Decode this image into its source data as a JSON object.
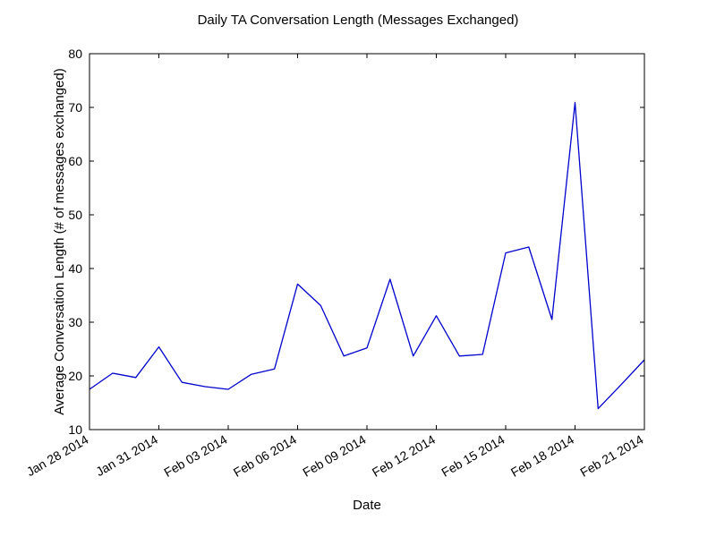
{
  "chart_data": {
    "type": "line",
    "title": "Daily TA Conversation Length (Messages Exchanged)",
    "xlabel": "Date",
    "ylabel": "Average Conversation Length (# of messages exchanged)",
    "x_axis": {
      "type": "date",
      "range": [
        "2014-01-28",
        "2014-02-21"
      ],
      "ticks": [
        {
          "date": "2014-01-28",
          "label": "Jan 28 2014"
        },
        {
          "date": "2014-01-31",
          "label": "Jan 31 2014"
        },
        {
          "date": "2014-02-03",
          "label": "Feb 03 2014"
        },
        {
          "date": "2014-02-06",
          "label": "Feb 06 2014"
        },
        {
          "date": "2014-02-09",
          "label": "Feb 09 2014"
        },
        {
          "date": "2014-02-12",
          "label": "Feb 12 2014"
        },
        {
          "date": "2014-02-15",
          "label": "Feb 15 2014"
        },
        {
          "date": "2014-02-18",
          "label": "Feb 18 2014"
        },
        {
          "date": "2014-02-21",
          "label": "Feb 21 2014"
        }
      ]
    },
    "y_axis": {
      "range": [
        10,
        80
      ],
      "ticks": [
        10,
        20,
        30,
        40,
        50,
        60,
        70,
        80
      ]
    },
    "grid": false,
    "legend": "none",
    "series": [
      {
        "color": "#0000cc",
        "points": [
          {
            "x": "2014-01-28",
            "y": 17.5
          },
          {
            "x": "2014-01-29",
            "y": 20.5
          },
          {
            "x": "2014-01-30",
            "y": 19.7
          },
          {
            "x": "2014-01-31",
            "y": 25.4
          },
          {
            "x": "2014-02-01",
            "y": 18.8
          },
          {
            "x": "2014-02-02",
            "y": 18.0
          },
          {
            "x": "2014-02-03",
            "y": 17.5
          },
          {
            "x": "2014-02-04",
            "y": 20.3
          },
          {
            "x": "2014-02-05",
            "y": 21.3
          },
          {
            "x": "2014-02-06",
            "y": 37.1
          },
          {
            "x": "2014-02-07",
            "y": 33.1
          },
          {
            "x": "2014-02-08",
            "y": 23.7
          },
          {
            "x": "2014-02-09",
            "y": 25.2
          },
          {
            "x": "2014-02-10",
            "y": 38.0
          },
          {
            "x": "2014-02-11",
            "y": 23.7
          },
          {
            "x": "2014-02-12",
            "y": 31.2
          },
          {
            "x": "2014-02-13",
            "y": 23.7
          },
          {
            "x": "2014-02-14",
            "y": 24.0
          },
          {
            "x": "2014-02-15",
            "y": 42.9
          },
          {
            "x": "2014-02-16",
            "y": 44.0
          },
          {
            "x": "2014-02-17",
            "y": 30.5
          },
          {
            "x": "2014-02-18",
            "y": 70.9
          },
          {
            "x": "2014-02-19",
            "y": 13.9
          },
          {
            "x": "2014-02-20",
            "y": 18.4
          },
          {
            "x": "2014-02-21",
            "y": 23.0
          }
        ]
      }
    ]
  }
}
